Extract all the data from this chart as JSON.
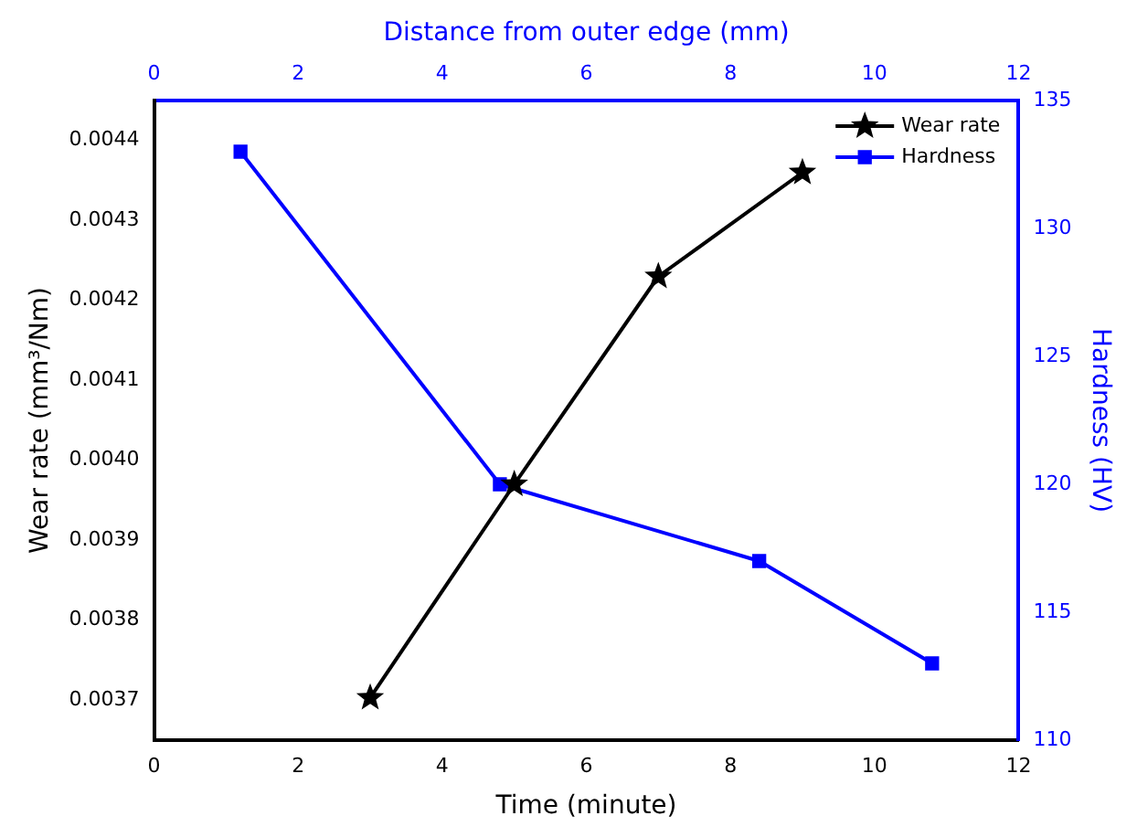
{
  "chart_data": {
    "type": "line",
    "xlabel": "Time (minute)",
    "x2label": "Distance from outer edge (mm)",
    "ylabel": "Wear rate (mm³/Nm)",
    "y2label": "Hardness (HV)",
    "xlim": [
      0,
      12
    ],
    "xticks": [
      0,
      2,
      4,
      6,
      8,
      10,
      12
    ],
    "x2lim": [
      0,
      12
    ],
    "x2ticks": [
      0,
      2,
      4,
      6,
      8,
      10,
      12
    ],
    "ylim": [
      0.00365,
      0.00445
    ],
    "yticks": [
      {
        "value": 0.0037,
        "label": "0.0037"
      },
      {
        "value": 0.0038,
        "label": "0.0038"
      },
      {
        "value": 0.0039,
        "label": "0.0039"
      },
      {
        "value": 0.004,
        "label": "0.0040"
      },
      {
        "value": 0.0041,
        "label": "0.0041"
      },
      {
        "value": 0.0042,
        "label": "0.0042"
      },
      {
        "value": 0.0043,
        "label": "0.0043"
      },
      {
        "value": 0.0044,
        "label": "0.0044"
      }
    ],
    "y2lim": [
      110,
      135
    ],
    "y2ticks": [
      110,
      115,
      120,
      125,
      130,
      135
    ],
    "legend": "top right",
    "grid": false,
    "line_style": "solid",
    "series": [
      {
        "name": "Wear rate",
        "color": "#000000",
        "marker": "star",
        "x": [
          3,
          5,
          7,
          9
        ],
        "values": [
          0.003703,
          0.00397,
          0.00423,
          0.00436
        ]
      },
      {
        "name": "Hardness",
        "color": "#0000ff",
        "marker": "square",
        "axis": "y2",
        "x": [
          1.2,
          4.8,
          8.4,
          10.8
        ],
        "values": [
          133,
          120,
          117,
          113
        ]
      }
    ]
  }
}
